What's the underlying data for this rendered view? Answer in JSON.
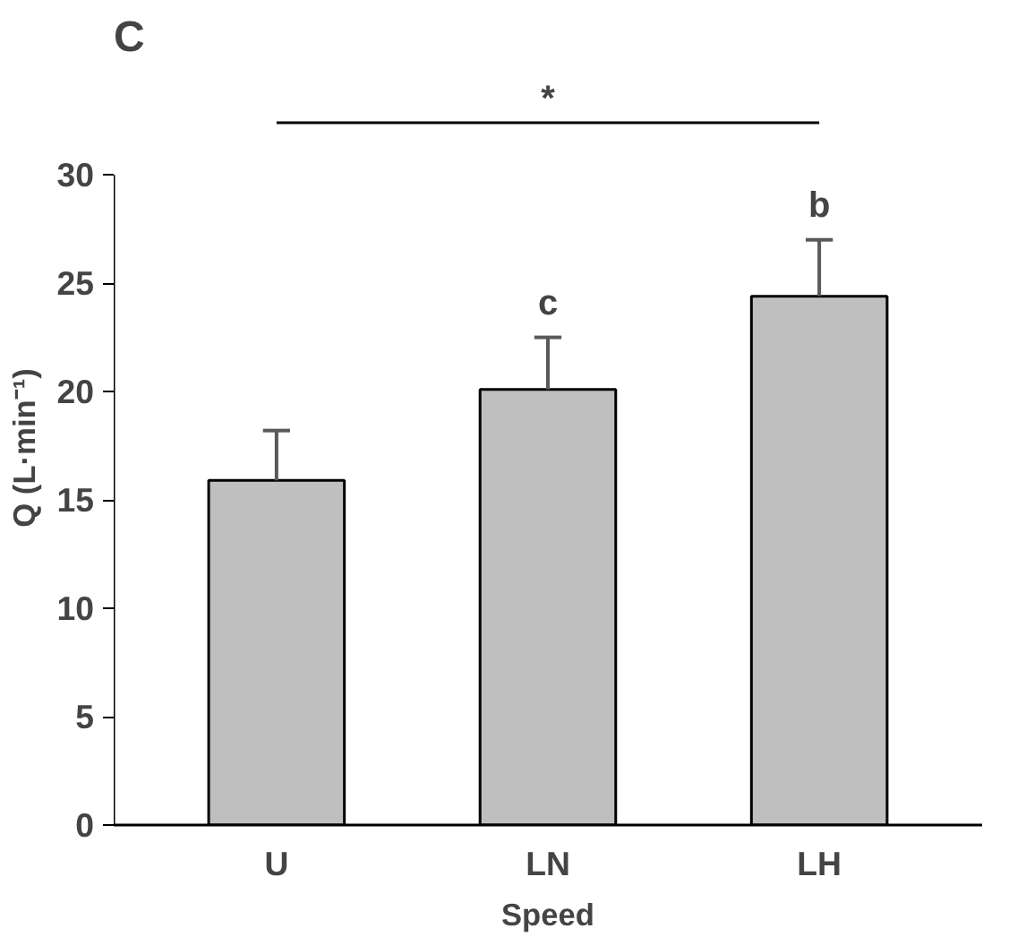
{
  "chart_data": {
    "type": "bar",
    "xlabel": "Speed",
    "ylabel": "Q (L·min⁻¹)",
    "categories": [
      "U",
      "LN",
      "LH"
    ],
    "values": [
      15.9,
      20.1,
      24.4
    ],
    "errors": [
      [
        15.9,
        18.2
      ],
      [
        20.1,
        22.5
      ],
      [
        24.4,
        27.0
      ]
    ],
    "color": "#bfbfbf",
    "ylim": [
      0,
      30
    ],
    "yticks": [
      0,
      5,
      10,
      15,
      20,
      25,
      30
    ],
    "grid": false,
    "annotations": [
      "C",
      "*",
      "c",
      "b"
    ]
  }
}
